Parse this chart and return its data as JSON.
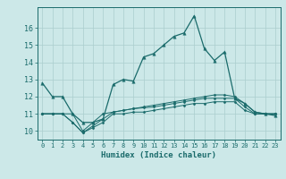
{
  "xlabel": "Humidex (Indice chaleur)",
  "background_color": "#cce8e8",
  "grid_color": "#aacece",
  "line_color": "#1a6b6b",
  "xlim": [
    -0.5,
    23.5
  ],
  "ylim": [
    9.5,
    17.2
  ],
  "yticks": [
    10,
    11,
    12,
    13,
    14,
    15,
    16
  ],
  "xticks": [
    0,
    1,
    2,
    3,
    4,
    5,
    6,
    7,
    8,
    9,
    10,
    11,
    12,
    13,
    14,
    15,
    16,
    17,
    18,
    19,
    20,
    21,
    22,
    23
  ],
  "line1_x": [
    0,
    1,
    2,
    3,
    4,
    5,
    6,
    7,
    8,
    9,
    10,
    11,
    12,
    13,
    14,
    15,
    16,
    17,
    18,
    19,
    20,
    21,
    22,
    23
  ],
  "line1_y": [
    12.8,
    12.0,
    12.0,
    11.0,
    10.5,
    10.5,
    10.7,
    12.7,
    13.0,
    12.9,
    14.3,
    14.5,
    15.0,
    15.5,
    15.7,
    16.7,
    14.8,
    14.1,
    14.6,
    11.9,
    11.6,
    11.1,
    11.0,
    10.9
  ],
  "line2_x": [
    0,
    1,
    2,
    3,
    4,
    5,
    6,
    7,
    8,
    9,
    10,
    11,
    12,
    13,
    14,
    15,
    16,
    17,
    18,
    19,
    20,
    21,
    22,
    23
  ],
  "line2_y": [
    11.0,
    11.0,
    11.0,
    11.0,
    10.0,
    10.5,
    11.0,
    11.1,
    11.2,
    11.3,
    11.4,
    11.5,
    11.6,
    11.7,
    11.8,
    11.9,
    12.0,
    12.1,
    12.1,
    12.0,
    11.6,
    11.1,
    11.0,
    11.0
  ],
  "line3_x": [
    0,
    1,
    2,
    3,
    4,
    5,
    6,
    7,
    8,
    9,
    10,
    11,
    12,
    13,
    14,
    15,
    16,
    17,
    18,
    19,
    20,
    21,
    22,
    23
  ],
  "line3_y": [
    11.0,
    11.0,
    11.0,
    10.5,
    9.9,
    10.3,
    10.7,
    11.1,
    11.2,
    11.3,
    11.35,
    11.4,
    11.5,
    11.6,
    11.7,
    11.8,
    11.9,
    11.9,
    11.9,
    11.9,
    11.4,
    11.0,
    11.0,
    11.0
  ],
  "line4_x": [
    0,
    1,
    2,
    3,
    4,
    5,
    6,
    7,
    8,
    9,
    10,
    11,
    12,
    13,
    14,
    15,
    16,
    17,
    18,
    19,
    20,
    21,
    22,
    23
  ],
  "line4_y": [
    11.0,
    11.0,
    11.0,
    10.5,
    9.9,
    10.2,
    10.5,
    11.0,
    11.0,
    11.1,
    11.1,
    11.2,
    11.3,
    11.4,
    11.5,
    11.6,
    11.6,
    11.7,
    11.7,
    11.7,
    11.2,
    11.0,
    11.0,
    11.0
  ]
}
